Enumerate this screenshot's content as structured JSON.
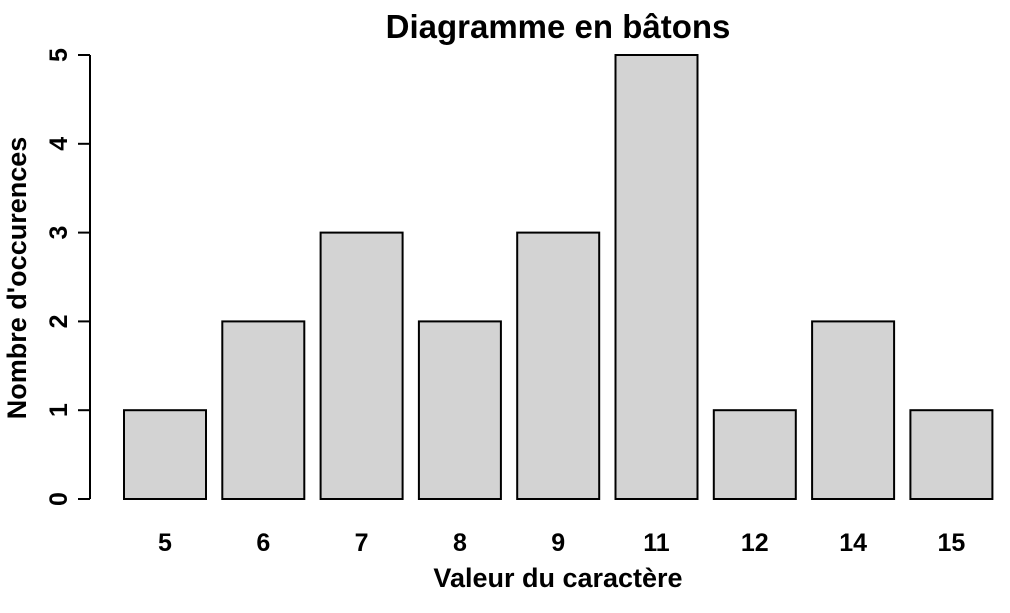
{
  "chart_data": {
    "type": "bar",
    "title": "Diagramme en bâtons",
    "xlabel": "Valeur du caractère",
    "ylabel": "Nombre d'occurences",
    "categories": [
      "5",
      "6",
      "7",
      "8",
      "9",
      "11",
      "12",
      "14",
      "15"
    ],
    "values": [
      1,
      2,
      3,
      2,
      3,
      5,
      1,
      2,
      1
    ],
    "ylim": [
      0,
      5
    ],
    "yticks": [
      "0",
      "1",
      "2",
      "3",
      "4",
      "5"
    ],
    "grid": false,
    "colors": {
      "bar_fill": "#d3d3d3",
      "bar_stroke": "#000000"
    }
  }
}
